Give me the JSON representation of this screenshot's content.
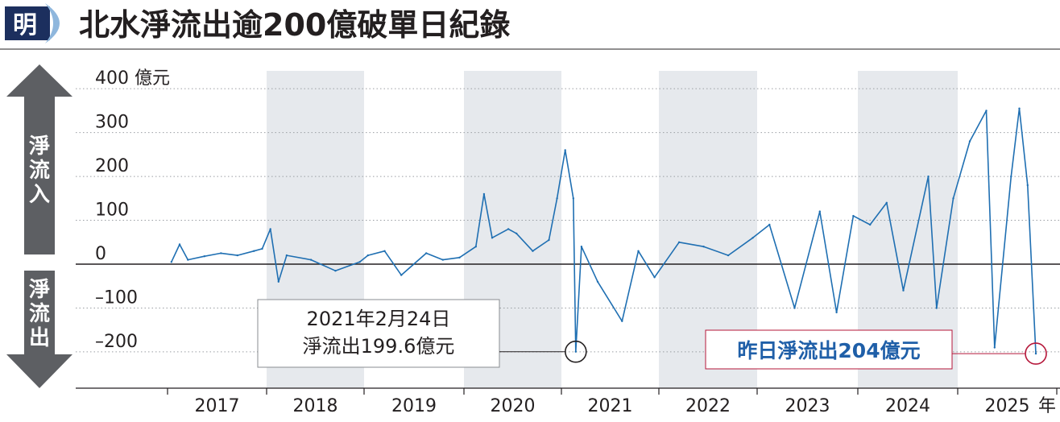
{
  "header": {
    "logo_char": "明",
    "title": "北水淨流出逾200億破單日紀錄"
  },
  "side_labels": {
    "inflow": "淨流入",
    "outflow": "淨流出"
  },
  "chart_data": {
    "type": "line",
    "title": "北水淨流出逾200億破單日紀錄",
    "xlabel": "年",
    "ylabel": "億元",
    "ylim": [
      -250,
      400
    ],
    "y_ticks": [
      {
        "value": 400,
        "label": "400 億元"
      },
      {
        "value": 300,
        "label": "300"
      },
      {
        "value": 200,
        "label": "200"
      },
      {
        "value": 100,
        "label": "100"
      },
      {
        "value": 0,
        "label": "0"
      },
      {
        "value": -100,
        "label": "–100"
      },
      {
        "value": -200,
        "label": "–200"
      }
    ],
    "x_categories": [
      "2017",
      "2018",
      "2019",
      "2020",
      "2021",
      "2022",
      "2023",
      "2024",
      "2025"
    ],
    "x_unit": "年",
    "shaded_years": [
      "2018",
      "2020",
      "2022",
      "2024"
    ],
    "series": [
      {
        "color": "#1f6fb2",
        "points": [
          [
            "2017-01",
            5
          ],
          [
            "2017-02",
            45
          ],
          [
            "2017-03",
            10
          ],
          [
            "2017-05",
            18
          ],
          [
            "2017-07",
            25
          ],
          [
            "2017-09",
            20
          ],
          [
            "2017-11",
            30
          ],
          [
            "2017-12",
            35
          ],
          [
            "2018-01",
            80
          ],
          [
            "2018-02",
            -40
          ],
          [
            "2018-03",
            20
          ],
          [
            "2018-06",
            10
          ],
          [
            "2018-09",
            -15
          ],
          [
            "2018-12",
            5
          ],
          [
            "2019-01",
            20
          ],
          [
            "2019-03",
            30
          ],
          [
            "2019-05",
            -25
          ],
          [
            "2019-08",
            25
          ],
          [
            "2019-10",
            10
          ],
          [
            "2019-12",
            15
          ],
          [
            "2020-02",
            40
          ],
          [
            "2020-03",
            160
          ],
          [
            "2020-04",
            60
          ],
          [
            "2020-06",
            80
          ],
          [
            "2020-07",
            70
          ],
          [
            "2020-09",
            30
          ],
          [
            "2020-11",
            55
          ],
          [
            "2020-12",
            150
          ],
          [
            "2021-01",
            260
          ],
          [
            "2021-02",
            150
          ],
          [
            "2021-02-24",
            -199.6
          ],
          [
            "2021-03",
            40
          ],
          [
            "2021-05",
            -40
          ],
          [
            "2021-08",
            -130
          ],
          [
            "2021-10",
            30
          ],
          [
            "2021-12",
            -30
          ],
          [
            "2022-03",
            50
          ],
          [
            "2022-06",
            40
          ],
          [
            "2022-09",
            20
          ],
          [
            "2022-12",
            60
          ],
          [
            "2023-02",
            90
          ],
          [
            "2023-05",
            -100
          ],
          [
            "2023-08",
            120
          ],
          [
            "2023-10",
            -110
          ],
          [
            "2023-12",
            110
          ],
          [
            "2024-02",
            90
          ],
          [
            "2024-04",
            140
          ],
          [
            "2024-06",
            -60
          ],
          [
            "2024-09",
            200
          ],
          [
            "2024-10",
            -100
          ],
          [
            "2024-12",
            150
          ],
          [
            "2025-02",
            280
          ],
          [
            "2025-04",
            350
          ],
          [
            "2025-05",
            -190
          ],
          [
            "2025-07",
            200
          ],
          [
            "2025-08",
            355
          ],
          [
            "2025-09",
            180
          ],
          [
            "2025-10",
            -204
          ]
        ]
      }
    ],
    "annotations": [
      {
        "date": "2021-02-24",
        "value": -199.6,
        "lines": [
          "2021年2月24日",
          "淨流出199.6億元"
        ],
        "highlight": false
      },
      {
        "date": "2025-10",
        "value": -204,
        "lines": [
          "昨日淨流出204億元"
        ],
        "highlight": true
      }
    ],
    "grid": "horizontal dotted",
    "colors": {
      "line": "#1f6fb2",
      "shade": "#e6e9ed",
      "axis_arrow": "#5d5f63",
      "highlight": "#b5173a"
    }
  }
}
